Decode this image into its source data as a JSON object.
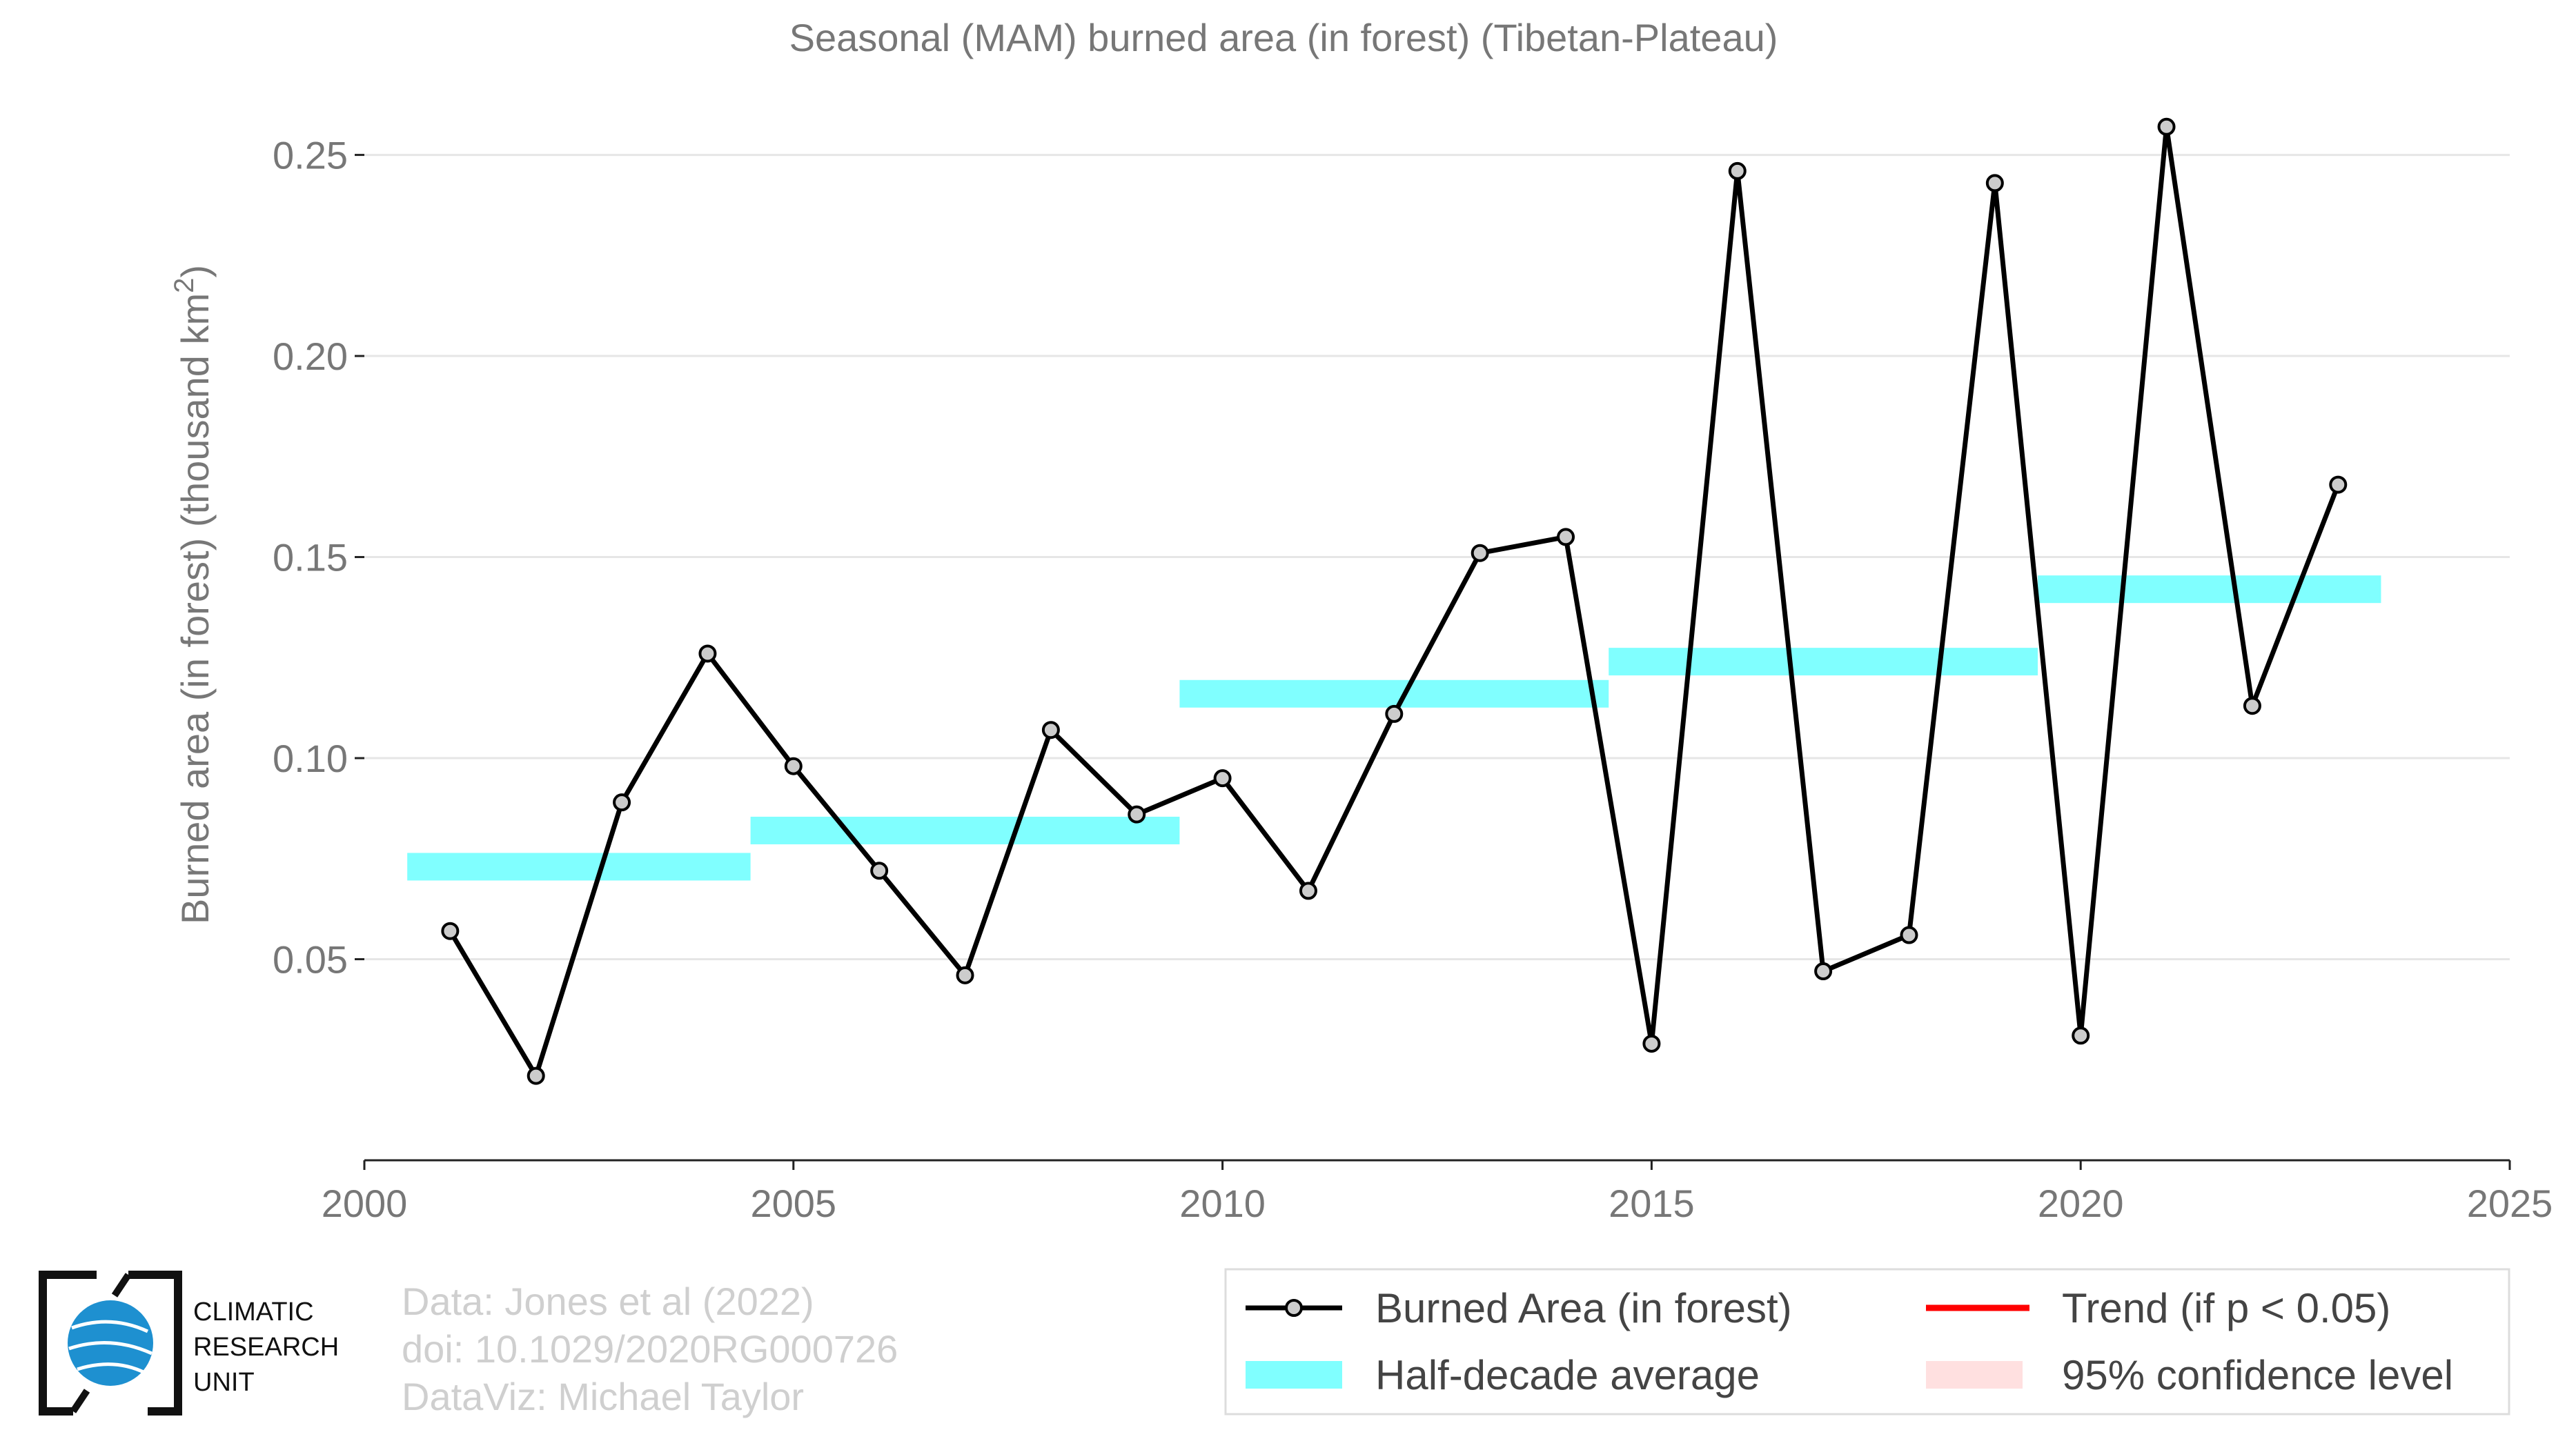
{
  "chart_data": {
    "type": "line",
    "title": "Seasonal (MAM) burned area (in forest) (Tibetan-Plateau)",
    "ylabel": "Burned area (in forest) (thousand km",
    "ylabel_sup": "2",
    "ylabel_close": ")",
    "xlabel": "",
    "xlim": [
      2000,
      2025
    ],
    "ylim": [
      0.0,
      0.2525
    ],
    "x_ticks": [
      2000,
      2005,
      2010,
      2015,
      2020,
      2025
    ],
    "x_tick_labels": [
      "2000",
      "2005",
      "2010",
      "2015",
      "2020",
      "2025"
    ],
    "y_ticks": [
      0.05,
      0.1,
      0.15,
      0.2,
      0.25
    ],
    "y_tick_labels": [
      "0.05",
      "0.10",
      "0.15",
      "0.20",
      "0.25"
    ],
    "grid": true,
    "series": [
      {
        "name": "Burned Area (in forest)",
        "color": "#000000",
        "marker_fill": "#cccccc",
        "x": [
          2001,
          2002,
          2003,
          2004,
          2005,
          2006,
          2007,
          2008,
          2009,
          2010,
          2011,
          2012,
          2013,
          2014,
          2015,
          2016,
          2017,
          2018,
          2019,
          2020,
          2021,
          2022,
          2023
        ],
        "y": [
          0.057,
          0.021,
          0.089,
          0.126,
          0.098,
          0.072,
          0.046,
          0.107,
          0.086,
          0.095,
          0.067,
          0.111,
          0.151,
          0.155,
          0.029,
          0.246,
          0.047,
          0.056,
          0.243,
          0.031,
          0.257,
          0.113,
          0.168
        ]
      }
    ],
    "half_decade_average": {
      "name": "Half-decade average",
      "color": "#80ffff",
      "segments": [
        {
          "x_start": 2000.5,
          "x_end": 2004.5,
          "y": 0.073
        },
        {
          "x_start": 2004.5,
          "x_end": 2009.5,
          "y": 0.082
        },
        {
          "x_start": 2009.5,
          "x_end": 2014.5,
          "y": 0.116
        },
        {
          "x_start": 2014.5,
          "x_end": 2019.5,
          "y": 0.124
        },
        {
          "x_start": 2019.5,
          "x_end": 2023.5,
          "y": 0.142
        }
      ]
    },
    "legend": {
      "placement": "bottom-right",
      "entries": [
        {
          "label": "Burned Area (in forest)",
          "kind": "line-marker",
          "color": "#000000"
        },
        {
          "label": "Trend (if p < 0.05)",
          "kind": "line",
          "color": "#ff0000"
        },
        {
          "label": "Half-decade average",
          "kind": "band",
          "color": "#80ffff"
        },
        {
          "label": "95% confidence level",
          "kind": "band",
          "color": "#ffe0e0"
        }
      ]
    }
  },
  "credits": {
    "line1": "Data: Jones et al (2022)",
    "line2": "doi: 10.1029/2020RG000726",
    "line3": "DataViz: Michael Taylor"
  },
  "logo": {
    "line1": "CLIMATIC",
    "line2": "RESEARCH",
    "line3": "UNIT",
    "globe_color": "#1e90d0"
  }
}
